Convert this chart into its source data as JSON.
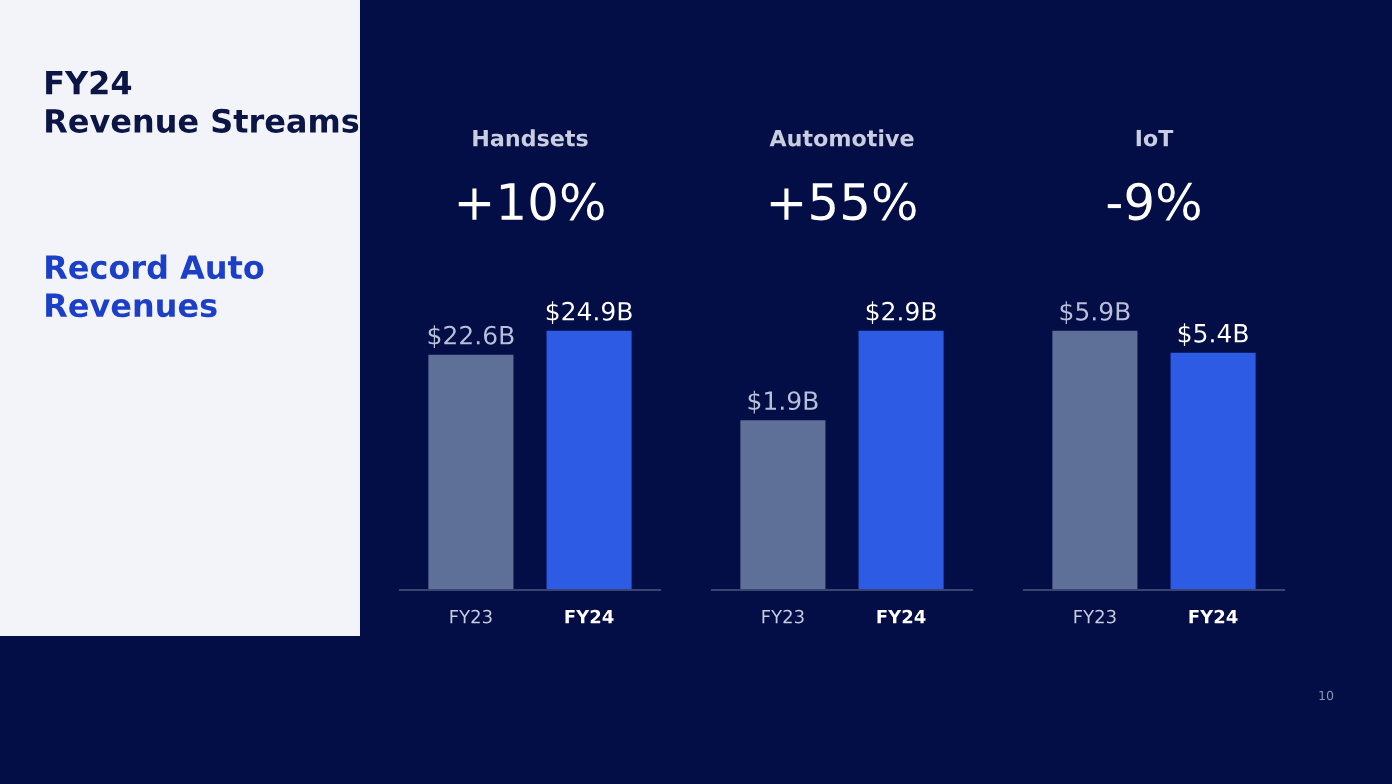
{
  "chart_data": [
    {
      "type": "other",
      "title": "FY24\nRevenue Streams",
      "subtitle": "Record Auto\nRevenues",
      "annotations": [
        "10"
      ]
    },
    {
      "type": "bar",
      "title": "Handsets",
      "subtitle": "+10%",
      "categories": [
        "FY23",
        "FY24"
      ],
      "values": [
        22.6,
        24.9
      ],
      "value_labels": [
        "$22.6B",
        "$24.9B"
      ],
      "colors": [
        "#5e6f98",
        "#2d5be3"
      ]
    },
    {
      "type": "bar",
      "title": "Automotive",
      "subtitle": "+55%",
      "categories": [
        "FY23",
        "FY24"
      ],
      "values": [
        1.9,
        2.9
      ],
      "value_labels": [
        "$1.9B",
        "$2.9B"
      ],
      "colors": [
        "#5e6f98",
        "#2d5be3"
      ]
    },
    {
      "type": "bar",
      "title": "IoT",
      "subtitle": "-9%",
      "categories": [
        "FY23",
        "FY24"
      ],
      "values": [
        5.9,
        5.4
      ],
      "value_labels": [
        "$5.9B",
        "$5.4B"
      ],
      "colors": [
        "#5e6f98",
        "#2d5be3"
      ]
    }
  ]
}
